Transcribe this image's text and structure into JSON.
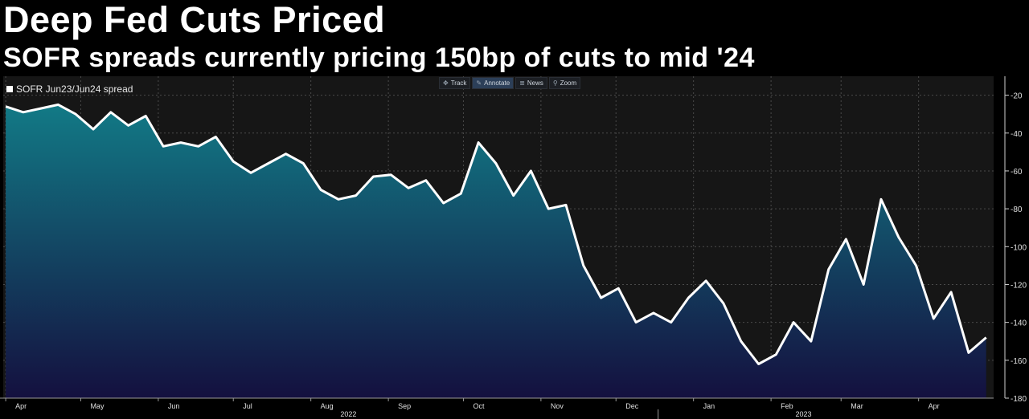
{
  "header": {
    "title": "Deep Fed Cuts Priced",
    "subtitle": "SOFR spreads currently pricing 150bp of cuts to mid '24"
  },
  "toolbar": {
    "buttons": [
      {
        "label": "Track",
        "icon": "crosshair-icon",
        "active": false
      },
      {
        "label": "Annotate",
        "icon": "pencil-icon",
        "active": true
      },
      {
        "label": "News",
        "icon": "news-icon",
        "active": false
      },
      {
        "label": "Zoom",
        "icon": "magnifier-icon",
        "active": false
      }
    ]
  },
  "colors": {
    "line": "#ffffff",
    "area_top": "#127a86",
    "area_bottom": "#14103f",
    "background": "#161616",
    "grid": "#4a4a4a"
  },
  "chart_data": {
    "type": "area",
    "title": "Deep Fed Cuts Priced",
    "subtitle": "SOFR spreads currently pricing 150bp of cuts to mid '24",
    "series": [
      {
        "name": "SOFR Jun23/Jun24 spread",
        "x": [
          "2022-04-01",
          "2022-04-08",
          "2022-04-15",
          "2022-04-22",
          "2022-04-29",
          "2022-05-06",
          "2022-05-13",
          "2022-05-20",
          "2022-05-27",
          "2022-06-03",
          "2022-06-10",
          "2022-06-17",
          "2022-06-24",
          "2022-07-01",
          "2022-07-08",
          "2022-07-15",
          "2022-07-22",
          "2022-07-29",
          "2022-08-05",
          "2022-08-12",
          "2022-08-19",
          "2022-08-26",
          "2022-09-02",
          "2022-09-09",
          "2022-09-16",
          "2022-09-23",
          "2022-09-30",
          "2022-10-07",
          "2022-10-14",
          "2022-10-21",
          "2022-10-28",
          "2022-11-04",
          "2022-11-11",
          "2022-11-18",
          "2022-11-25",
          "2022-12-02",
          "2022-12-09",
          "2022-12-16",
          "2022-12-23",
          "2022-12-30",
          "2023-01-06",
          "2023-01-13",
          "2023-01-20",
          "2023-01-27",
          "2023-02-03",
          "2023-02-10",
          "2023-02-17",
          "2023-02-24",
          "2023-03-03",
          "2023-03-10",
          "2023-03-17",
          "2023-03-24",
          "2023-03-31",
          "2023-04-07",
          "2023-04-14",
          "2023-04-21",
          "2023-04-28"
        ],
        "values": [
          -26,
          -29,
          -27,
          -25,
          -30,
          -38,
          -29,
          -36,
          -31,
          -47,
          -45,
          -47,
          -42,
          -55,
          -61,
          -56,
          -51,
          -56,
          -70,
          -75,
          -73,
          -63,
          -62,
          -69,
          -65,
          -77,
          -72,
          -45,
          -56,
          -73,
          -60,
          -80,
          -78,
          -110,
          -127,
          -122,
          -140,
          -135,
          -140,
          -127,
          -118,
          -130,
          -150,
          -162,
          -157,
          -140,
          -150,
          -112,
          -96,
          -120,
          -75,
          -95,
          -110,
          -138,
          -124,
          -156,
          -148
        ]
      }
    ],
    "yticks": [
      -20,
      -40,
      -60,
      -80,
      -100,
      -120,
      -140,
      -160,
      -180
    ],
    "ylim": [
      -180,
      -10
    ],
    "xlim": [
      "2022-03-31",
      "2023-05-01"
    ],
    "xtick_labels": [
      "Apr",
      "May",
      "Jun",
      "Jul",
      "Aug",
      "Sep",
      "Oct",
      "Nov",
      "Dec",
      "Jan",
      "Feb",
      "Mar",
      "Apr"
    ],
    "xtick_dates": [
      "2022-04-01",
      "2022-05-01",
      "2022-06-01",
      "2022-07-01",
      "2022-08-01",
      "2022-09-01",
      "2022-10-01",
      "2022-11-01",
      "2022-12-01",
      "2023-01-01",
      "2023-02-01",
      "2023-03-01",
      "2023-04-01"
    ],
    "year_labels": [
      "2022",
      "2023"
    ],
    "year_dates": [
      "2022-08-16",
      "2023-02-14"
    ],
    "xlabel": "",
    "ylabel": "",
    "grid": true,
    "legend": "top-left",
    "y_axis_side": "right"
  }
}
